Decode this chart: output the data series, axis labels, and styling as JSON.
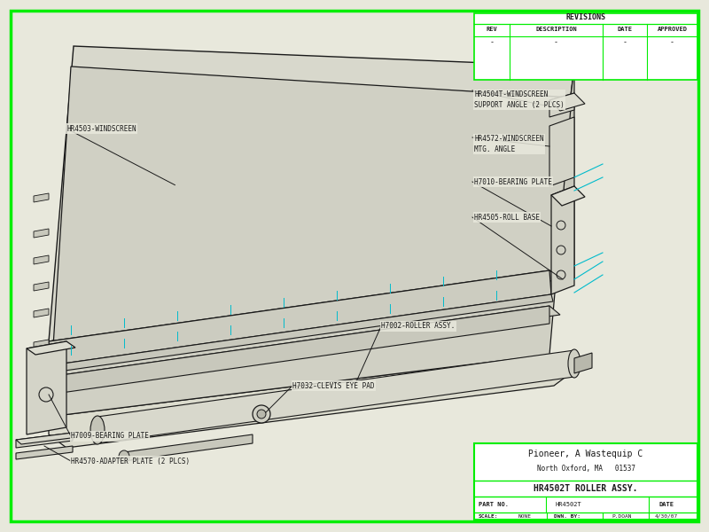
{
  "bg_color": "#e8e8dc",
  "border_color": "#00ee00",
  "line_color": "#1a1a1a",
  "cyan_color": "#00bbcc",
  "white": "#ffffff",
  "title": "HR4502T ROLLER ASSY.",
  "company_line1": "Pioneer, A Wastequip C",
  "company_line2": "North Oxford, MA   01537",
  "part_no": "HR4502T",
  "scale": "NONE",
  "drawn_by": "P.DOAN",
  "date": "4/30/07",
  "revisions_title": "REVISIONS",
  "rev_headers": [
    "REV",
    "DESCRIPTION",
    "DATE",
    "APPROVED"
  ],
  "rev_data": [
    "-",
    "-",
    "-",
    "-"
  ],
  "labels": {
    "windscreen": "HR4503-WINDSCREEN",
    "support_angle": "HR4504T-WINDSCREEN\nSUPPORT ANGLE (2 PLCS)",
    "mtg_angle": "HR4572-WINDSCREEN\nMTG. ANGLE",
    "bearing_plate_r": "H7010-BEARING PLATE",
    "roll_base": "HR4505-ROLL BASE",
    "roller_assy": "H7002-ROLLER ASSY.",
    "clevis": "H7032-CLEVIS EYE PAD",
    "bearing_plate_l": "H7009-BEARING PLATE",
    "adapter_plate": "HR4570-ADAPTER PLATE (2 PLCS)"
  }
}
